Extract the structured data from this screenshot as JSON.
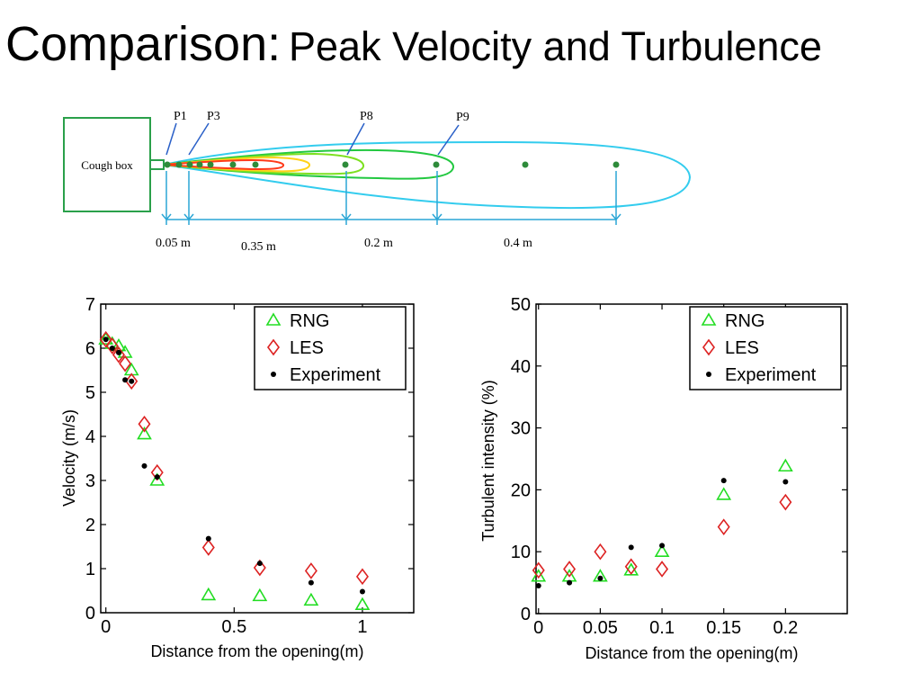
{
  "slide": {
    "title_main": "Comparison:",
    "title_sub": "Peak Velocity and Turbulence"
  },
  "diagram": {
    "box_label": "Cough box",
    "point_labels": [
      "P1",
      "P3",
      "P8",
      "P9"
    ],
    "distance_labels": [
      "0.05 m",
      "0.35 m",
      "0.2 m",
      "0.4 m"
    ],
    "contour_colors": [
      "#ff3a1a",
      "#ffd21a",
      "#7de020",
      "#22c840",
      "#33ccee"
    ],
    "box_color": "#2aa04a",
    "dimension_color": "#2aa6d6",
    "marker_color": "#2e8b3a"
  },
  "chart_data": [
    {
      "type": "scatter",
      "title": "",
      "xlabel": "Distance from the opening(m)",
      "ylabel": "Velocity (m/s)",
      "xlim": [
        -0.02,
        1.2
      ],
      "ylim": [
        0,
        7
      ],
      "xticks": [
        0,
        0.5,
        1
      ],
      "xtick_labels": [
        "0",
        "0.5",
        "1"
      ],
      "yticks": [
        0,
        1,
        2,
        3,
        4,
        5,
        6,
        7
      ],
      "ytick_labels": [
        "0",
        "1",
        "2",
        "3",
        "4",
        "5",
        "6",
        "7"
      ],
      "legend_position": "top-right",
      "series": [
        {
          "name": "RNG",
          "marker": "triangle",
          "color": "#22dd22",
          "x": [
            0,
            0.025,
            0.05,
            0.075,
            0.1,
            0.15,
            0.2,
            0.4,
            0.6,
            0.8,
            1.0
          ],
          "y": [
            6.2,
            6.1,
            6.05,
            5.9,
            5.5,
            4.05,
            3.0,
            0.4,
            0.38,
            0.28,
            0.18
          ]
        },
        {
          "name": "LES",
          "marker": "diamond",
          "color": "#dd2222",
          "x": [
            0,
            0.025,
            0.05,
            0.075,
            0.1,
            0.15,
            0.2,
            0.4,
            0.6,
            0.8,
            1.0
          ],
          "y": [
            6.2,
            6.05,
            5.85,
            5.65,
            5.25,
            4.28,
            3.18,
            1.48,
            1.02,
            0.95,
            0.82
          ]
        },
        {
          "name": "Experiment",
          "marker": "dot",
          "color": "#000000",
          "x": [
            0,
            0.025,
            0.05,
            0.075,
            0.1,
            0.15,
            0.2,
            0.4,
            0.6,
            0.8,
            1.0
          ],
          "y": [
            6.2,
            6.0,
            5.9,
            5.28,
            5.25,
            3.33,
            3.08,
            1.68,
            1.12,
            0.68,
            0.48
          ]
        }
      ]
    },
    {
      "type": "scatter",
      "title": "",
      "xlabel": "Distance from the opening(m)",
      "ylabel": "Turbulent intensity (%)",
      "xlim": [
        -0.002,
        0.25
      ],
      "ylim": [
        0,
        50
      ],
      "xticks": [
        0,
        0.05,
        0.1,
        0.15,
        0.2
      ],
      "xtick_labels": [
        "0",
        "0.05",
        "0.1",
        "0.15",
        "0.2"
      ],
      "yticks": [
        0,
        10,
        20,
        30,
        40,
        50
      ],
      "ytick_labels": [
        "0",
        "10",
        "20",
        "30",
        "40",
        "50"
      ],
      "legend_position": "top-right",
      "series": [
        {
          "name": "RNG",
          "marker": "triangle",
          "color": "#22dd22",
          "x": [
            0,
            0.025,
            0.05,
            0.075,
            0.1,
            0.15,
            0.2
          ],
          "y": [
            6.0,
            6.0,
            6.0,
            7.0,
            10.0,
            19.2,
            23.8
          ]
        },
        {
          "name": "LES",
          "marker": "diamond",
          "color": "#dd2222",
          "x": [
            0,
            0.025,
            0.05,
            0.075,
            0.1,
            0.15,
            0.2
          ],
          "y": [
            7.0,
            7.2,
            10.0,
            7.6,
            7.2,
            14.0,
            18.0
          ]
        },
        {
          "name": "Experiment",
          "marker": "dot",
          "color": "#000000",
          "x": [
            0,
            0.025,
            0.05,
            0.075,
            0.1,
            0.15,
            0.2
          ],
          "y": [
            4.5,
            5.0,
            5.7,
            10.7,
            11.0,
            21.5,
            21.3
          ]
        }
      ]
    }
  ]
}
